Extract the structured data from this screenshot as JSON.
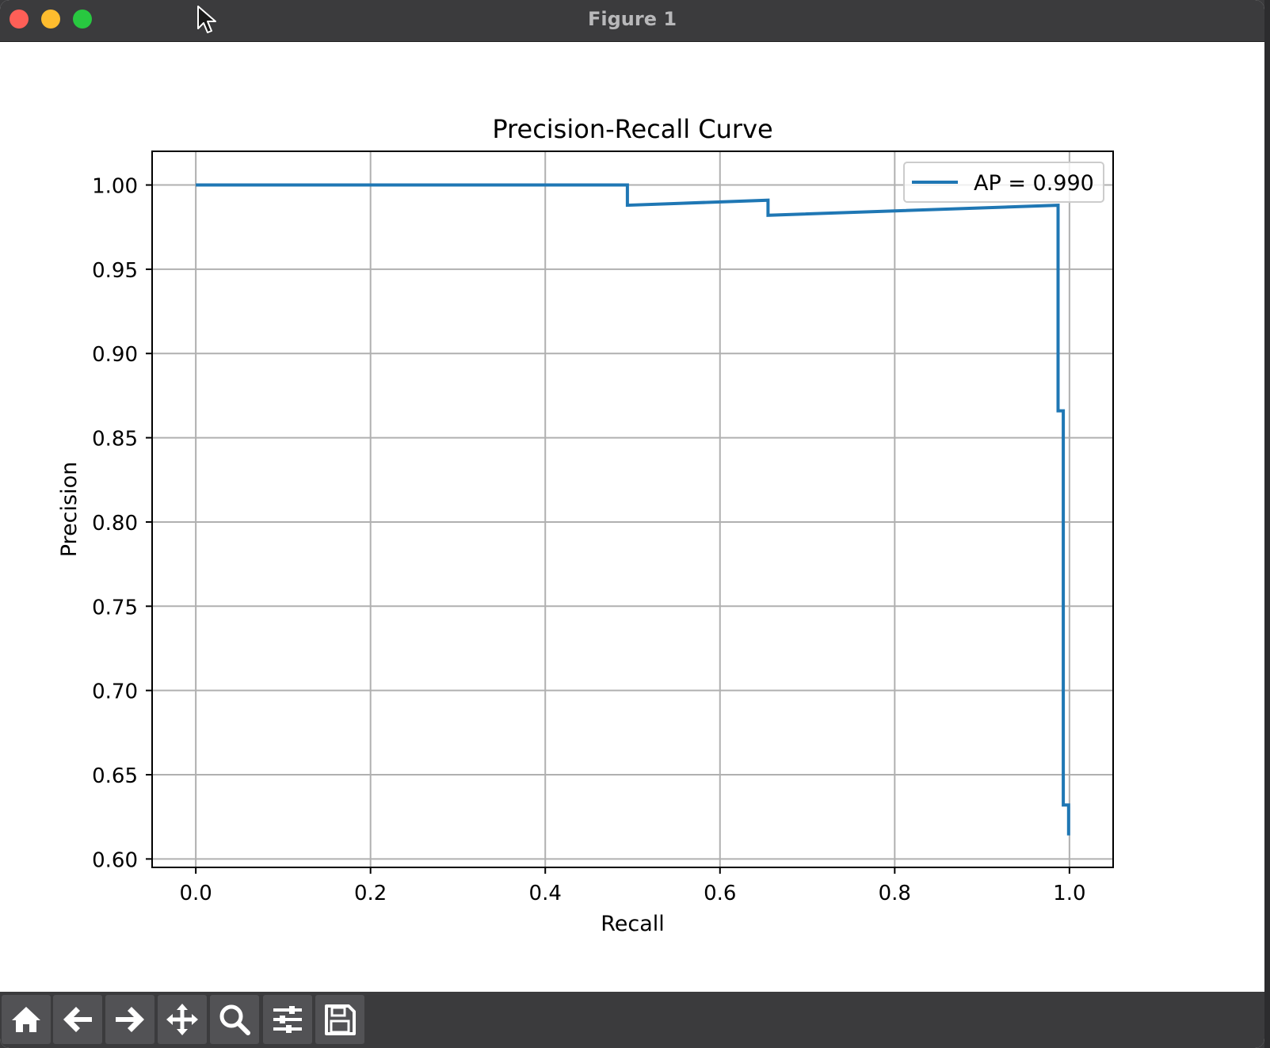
{
  "window": {
    "title": "Figure 1"
  },
  "toolbar": {
    "items": [
      {
        "name": "home-button",
        "icon": "home-icon"
      },
      {
        "name": "back-button",
        "icon": "arrow-left-icon"
      },
      {
        "name": "forward-button",
        "icon": "arrow-right-icon"
      },
      {
        "name": "pan-button",
        "icon": "move-icon"
      },
      {
        "name": "zoom-button",
        "icon": "magnifier-icon"
      },
      {
        "name": "configure-subplots-button",
        "icon": "sliders-icon"
      },
      {
        "name": "save-button",
        "icon": "floppy-disk-icon"
      }
    ]
  },
  "chart_data": {
    "type": "line",
    "title": "Precision-Recall Curve",
    "xlabel": "Recall",
    "ylabel": "Precision",
    "xlim": [
      -0.05,
      1.05
    ],
    "ylim": [
      0.595,
      1.02
    ],
    "xticks": [
      0.0,
      0.2,
      0.4,
      0.6,
      0.8,
      1.0
    ],
    "xtick_labels": [
      "0.0",
      "0.2",
      "0.4",
      "0.6",
      "0.8",
      "1.0"
    ],
    "yticks": [
      0.6,
      0.65,
      0.7,
      0.75,
      0.8,
      0.85,
      0.9,
      0.95,
      1.0
    ],
    "ytick_labels": [
      "0.60",
      "0.65",
      "0.70",
      "0.75",
      "0.80",
      "0.85",
      "0.90",
      "0.95",
      "1.00"
    ],
    "grid": true,
    "legend_position": "top-right",
    "series": [
      {
        "name": "AP = 0.990",
        "color": "#1f77b4",
        "points": [
          [
            0.0,
            1.0
          ],
          [
            0.494,
            1.0
          ],
          [
            0.494,
            0.988
          ],
          [
            0.655,
            0.991
          ],
          [
            0.655,
            0.982
          ],
          [
            0.987,
            0.988
          ],
          [
            0.987,
            0.866
          ],
          [
            0.993,
            0.866
          ],
          [
            0.993,
            0.632
          ],
          [
            0.999,
            0.632
          ],
          [
            0.999,
            0.614
          ]
        ]
      }
    ]
  }
}
